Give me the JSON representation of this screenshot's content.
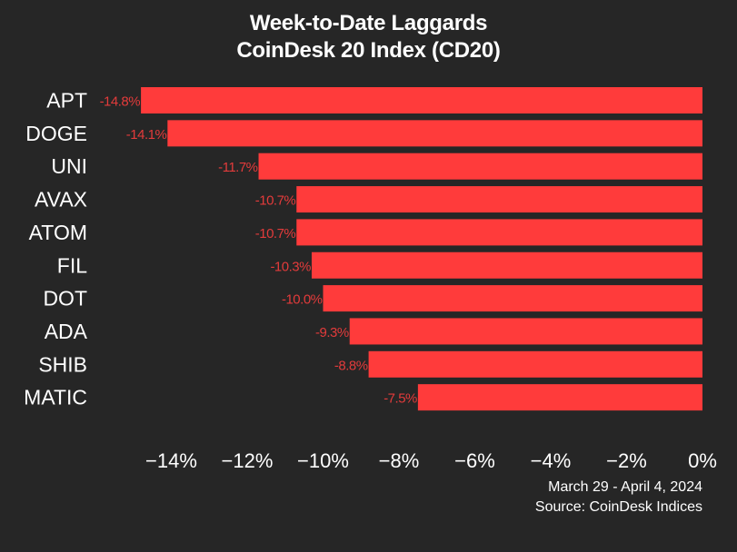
{
  "header": {
    "title_line1": "Week-to-Date Laggards",
    "title_line2": "CoinDesk 20 Index (CD20)"
  },
  "footer": {
    "date_range": "March 29 - April 4, 2024",
    "source": "Source: CoinDesk Indices"
  },
  "colors": {
    "background": "#262626",
    "bar": "#ff3b3b",
    "data_label": "#e23b3b",
    "text": "#ffffff"
  },
  "chart_data": {
    "type": "bar",
    "orientation": "horizontal",
    "title": "Week-to-Date Laggards",
    "subtitle": "CoinDesk 20 Index (CD20)",
    "categories": [
      "APT",
      "DOGE",
      "UNI",
      "AVAX",
      "ATOM",
      "FIL",
      "DOT",
      "ADA",
      "SHIB",
      "MATIC"
    ],
    "values": [
      -14.8,
      -14.1,
      -11.7,
      -10.7,
      -10.7,
      -10.3,
      -10.0,
      -9.3,
      -8.8,
      -7.5
    ],
    "data_labels": [
      "-14.8%",
      "-14.1%",
      "-11.7%",
      "-10.7%",
      "-10.7%",
      "-10.3%",
      "-10.0%",
      "-9.3%",
      "-8.8%",
      "-7.5%"
    ],
    "x_ticks": [
      -14,
      -12,
      -10,
      -8,
      -6,
      -4,
      -2,
      0
    ],
    "x_tick_labels": [
      "−14%",
      "−12%",
      "−10%",
      "−8%",
      "−6%",
      "−4%",
      "−2%",
      "0%"
    ],
    "xlim": [
      -15.0,
      0
    ],
    "xlabel": "",
    "ylabel": "",
    "grid": false,
    "legend": "none"
  }
}
